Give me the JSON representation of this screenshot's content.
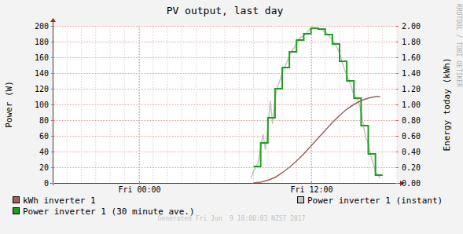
{
  "chart_data": {
    "type": "line",
    "title": "PV output, last day",
    "y_label": "Power (W)",
    "y2_label": "Energy today (kWh)",
    "side_text": "RRDTOOL / TOBI OETIKER",
    "footer": "Generated Fri Jun  9 18:00:03 NZST 2017",
    "xlim": [
      -6,
      18
    ],
    "xticks": [
      {
        "value": 0,
        "label": "Fri 00:00"
      },
      {
        "value": 12,
        "label": "Fri 12:00"
      }
    ],
    "ylim": [
      0,
      200
    ],
    "yticks": [
      0,
      20,
      40,
      60,
      80,
      100,
      120,
      140,
      160,
      180,
      200
    ],
    "y2lim": [
      0,
      2
    ],
    "y2ticks": [
      {
        "value": 0,
        "label": "0.00"
      },
      {
        "value": 0.2,
        "label": "0.20"
      },
      {
        "value": 0.4,
        "label": "0.40"
      },
      {
        "value": 0.6,
        "label": "0.60"
      },
      {
        "value": 0.8,
        "label": "0.80"
      },
      {
        "value": 1,
        "label": "1.00"
      },
      {
        "value": 1.2,
        "label": "1.20"
      },
      {
        "value": 1.4,
        "label": "1.40"
      },
      {
        "value": 1.6,
        "label": "1.60"
      },
      {
        "value": 1.8,
        "label": "1.80"
      },
      {
        "value": 2,
        "label": "2.00"
      }
    ],
    "grid": true,
    "legend": "bottom",
    "series": [
      {
        "name": "kWh inverter 1",
        "color": "#a0605c",
        "axis": "y2",
        "line_style": "solid",
        "x": [
          8.0,
          8.5,
          9.0,
          9.5,
          10.0,
          10.5,
          11.0,
          11.5,
          12.0,
          12.5,
          13.0,
          13.5,
          14.0,
          14.5,
          15.0,
          15.5,
          16.0,
          16.5,
          16.83
        ],
        "values": [
          0,
          0.01,
          0.035,
          0.07,
          0.13,
          0.2,
          0.28,
          0.37,
          0.47,
          0.57,
          0.67,
          0.77,
          0.86,
          0.94,
          1.0,
          1.05,
          1.08,
          1.1,
          1.1
        ]
      },
      {
        "name": "Power inverter 1 (instant)",
        "color": "#c4c4c4",
        "line_style": "solid",
        "x": [
          7.83,
          8.0,
          8.17,
          8.33,
          8.5,
          8.67,
          8.83,
          9.0,
          9.17,
          9.33,
          9.5,
          9.67,
          9.83,
          10.0,
          10.17,
          10.33,
          10.5,
          10.67,
          10.83,
          11.0,
          11.17,
          11.33,
          11.5,
          11.67,
          11.83,
          12.0,
          12.17,
          12.33,
          12.5,
          12.67,
          12.83,
          13.0,
          13.17,
          13.33,
          13.5,
          13.67,
          13.83,
          14.0,
          14.17,
          14.33,
          14.5,
          14.67,
          14.83,
          15.0,
          15.17,
          15.33,
          15.5,
          15.67,
          15.83,
          16.0,
          16.17,
          16.33,
          16.5,
          16.67,
          16.83
        ],
        "values": [
          6,
          15,
          20,
          27,
          45,
          62,
          42,
          70,
          105,
          75,
          108,
          122,
          130,
          140,
          147,
          154,
          162,
          168,
          172,
          178,
          183,
          186,
          187,
          190,
          194,
          197,
          198,
          197,
          197,
          196,
          194,
          192,
          189,
          186,
          182,
          177,
          172,
          165,
          155,
          145,
          138,
          130,
          122,
          112,
          108,
          104,
          90,
          72,
          58,
          50,
          35,
          26,
          14,
          10,
          6
        ]
      },
      {
        "name": "Power inverter 1 (30 minute ave.)",
        "color": "#1ea01e",
        "line_style": "step",
        "x": [
          8.0,
          8.5,
          9.0,
          9.5,
          10.0,
          10.5,
          11.0,
          11.5,
          12.0,
          12.5,
          13.0,
          13.5,
          14.0,
          14.5,
          15.0,
          15.5,
          16.0,
          16.5,
          17.0
        ],
        "values": [
          21,
          51,
          83,
          120,
          147,
          167,
          182,
          190,
          197,
          196,
          189,
          177,
          155,
          130,
          108,
          73,
          37,
          10,
          10
        ]
      }
    ]
  }
}
